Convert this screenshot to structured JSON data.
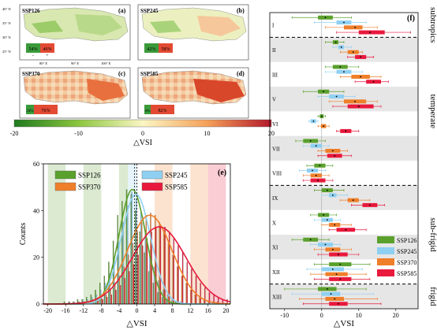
{
  "colors": {
    "SSP126": "#5aa02c",
    "SSP245": "#8fd0f2",
    "SSP370": "#ef7f2a",
    "SSP585": "#e8193c",
    "neg": "#2e8b2e",
    "pos": "#e34a33"
  },
  "maps": [
    {
      "tag": "SSP126",
      "panel": "(a)",
      "neg_pct": "54%",
      "pos_pct": "46%"
    },
    {
      "tag": "SSP245",
      "panel": "(b)",
      "neg_pct": "42%",
      "pos_pct": "58%"
    },
    {
      "tag": "SSP370",
      "panel": "(c)",
      "neg_pct": "24%",
      "pos_pct": "76%"
    },
    {
      "tag": "SSP585",
      "panel": "(d)",
      "neg_pct": "18%",
      "pos_pct": "82%"
    }
  ],
  "map_axes": {
    "lat_labels": [
      "40° N",
      "35° N",
      "30° N",
      "25° N"
    ],
    "lon_labels": [
      "80° E",
      "90° E",
      "100° E"
    ],
    "minus": "-",
    "plus": "+"
  },
  "colorbar": {
    "ticks": [
      "-20",
      "-10",
      "0",
      "10",
      "20"
    ],
    "label": "△VSI"
  },
  "chart_data": [
    {
      "type": "bar",
      "panel": "(e)",
      "xlabel": "△VSI",
      "ylabel": "Counts",
      "xlim": [
        -21,
        21
      ],
      "ylim": [
        0,
        60
      ],
      "x_ticks": [
        "-20",
        "-16",
        "-12",
        "-8",
        "-4",
        "0",
        "4",
        "8",
        "12",
        "16",
        "20"
      ],
      "y_ticks": [
        "0",
        "20",
        "40",
        "60"
      ],
      "legend": [
        "SSP126",
        "SSP370",
        "SSP245",
        "SSP585"
      ],
      "bins": [
        -20,
        -19,
        -18,
        -17,
        -16,
        -15,
        -14,
        -13,
        -12,
        -11,
        -10,
        -9,
        -8,
        -7,
        -6,
        -5,
        -4,
        -3,
        -2,
        -1,
        0,
        1,
        2,
        3,
        4,
        5,
        6,
        7,
        8,
        9,
        10,
        11,
        12,
        13,
        14,
        15,
        16,
        17,
        18,
        19,
        20
      ],
      "series": [
        {
          "name": "SSP126",
          "values": [
            0,
            0,
            0,
            0,
            1,
            1,
            1,
            2,
            2,
            3,
            4,
            6,
            9,
            12,
            18,
            27,
            38,
            44,
            49,
            47,
            40,
            31,
            22,
            14,
            9,
            5,
            3,
            2,
            1,
            1,
            0,
            0,
            0,
            0,
            0,
            0,
            0,
            0,
            0,
            0,
            0
          ]
        },
        {
          "name": "SSP245",
          "values": [
            0,
            0,
            0,
            0,
            0,
            1,
            1,
            1,
            2,
            2,
            3,
            4,
            6,
            9,
            13,
            19,
            27,
            35,
            42,
            48,
            45,
            39,
            31,
            23,
            16,
            10,
            6,
            4,
            2,
            1,
            1,
            0,
            0,
            0,
            0,
            0,
            0,
            0,
            0,
            0,
            0
          ]
        },
        {
          "name": "SSP370",
          "values": [
            0,
            0,
            0,
            0,
            0,
            0,
            0,
            1,
            1,
            1,
            2,
            2,
            3,
            4,
            6,
            9,
            12,
            16,
            21,
            26,
            31,
            35,
            38,
            39,
            38,
            35,
            31,
            26,
            21,
            16,
            12,
            9,
            6,
            4,
            3,
            2,
            1,
            1,
            1,
            0,
            0
          ]
        },
        {
          "name": "SSP585",
          "values": [
            0,
            0,
            0,
            0,
            0,
            0,
            0,
            0,
            1,
            1,
            1,
            2,
            2,
            3,
            4,
            6,
            8,
            11,
            14,
            17,
            21,
            25,
            28,
            31,
            33,
            34,
            33,
            31,
            28,
            25,
            22,
            18,
            15,
            12,
            9,
            7,
            5,
            4,
            3,
            2,
            2
          ]
        }
      ],
      "fit_curves": [
        {
          "name": "SSP126",
          "mean": -1.0,
          "sd": 3.0,
          "peak": 49
        },
        {
          "name": "SSP245",
          "mean": -0.2,
          "sd": 3.3,
          "peak": 47
        },
        {
          "name": "SSP370",
          "mean": 2.9,
          "sd": 5.0,
          "peak": 38
        },
        {
          "name": "SSP585",
          "mean": 5.0,
          "sd": 6.0,
          "peak": 33
        }
      ],
      "shaded_bands": [
        {
          "name": "SSP126",
          "range": [
            -20,
            -16
          ]
        },
        {
          "name": "SSP126",
          "range": [
            -12,
            -8
          ]
        },
        {
          "name": "SSP126",
          "range": [
            -4,
            -2
          ]
        },
        {
          "name": "SSP245",
          "range": [
            -2,
            0
          ]
        },
        {
          "name": "SSP370",
          "range": [
            4,
            8
          ]
        },
        {
          "name": "SSP370",
          "range": [
            12,
            16
          ]
        },
        {
          "name": "SSP585",
          "range": [
            16,
            20
          ]
        }
      ],
      "mean_lines": [
        -0.5,
        0.0
      ]
    },
    {
      "type": "box",
      "panel": "(f)",
      "xlabel": "△VSI",
      "xlim": [
        -14,
        26
      ],
      "x_ticks": [
        "-10",
        "0",
        "10",
        "20"
      ],
      "legend": [
        "SSP126",
        "SSP245",
        "SSP370",
        "SSP585"
      ],
      "zones": [
        {
          "name": "subtropics",
          "rows": [
            "I"
          ]
        },
        {
          "name": "temperate",
          "rows": [
            "II",
            "III",
            "V",
            "VI",
            "VII",
            "VIII"
          ]
        },
        {
          "name": "sub-frigid",
          "rows": [
            "IX",
            "X",
            "XI",
            "XII"
          ]
        },
        {
          "name": "frigid",
          "rows": [
            "XIII"
          ]
        }
      ],
      "rows": [
        {
          "label": "I",
          "boxes": [
            {
              "name": "SSP126",
              "whisker": [
                -8,
                8
              ],
              "q1": -1,
              "q3": 3,
              "median": 1
            },
            {
              "name": "SSP245",
              "whisker": [
                -2,
                12
              ],
              "q1": 4,
              "q3": 8,
              "median": 6
            },
            {
              "name": "SSP370",
              "whisker": [
                1,
                15
              ],
              "q1": 6,
              "q3": 11,
              "median": 9
            },
            {
              "name": "SSP585",
              "whisker": [
                4,
                24
              ],
              "q1": 10,
              "q3": 17,
              "median": 13
            }
          ]
        },
        {
          "label": "II",
          "boxes": [
            {
              "name": "SSP126",
              "whisker": [
                1,
                6
              ],
              "q1": 3,
              "q3": 4.5,
              "median": 3.8
            },
            {
              "name": "SSP245",
              "whisker": [
                3,
                8
              ],
              "q1": 4.5,
              "q3": 6,
              "median": 5.3
            },
            {
              "name": "SSP370",
              "whisker": [
                5,
                11
              ],
              "q1": 7,
              "q3": 10,
              "median": 8.5
            },
            {
              "name": "SSP585",
              "whisker": [
                7,
                14
              ],
              "q1": 9,
              "q3": 12,
              "median": 10.5
            }
          ]
        },
        {
          "label": "III",
          "boxes": [
            {
              "name": "SSP126",
              "whisker": [
                1,
                10
              ],
              "q1": 3,
              "q3": 7,
              "median": 5
            },
            {
              "name": "SSP245",
              "whisker": [
                1,
                11
              ],
              "q1": 4,
              "q3": 8,
              "median": 6
            },
            {
              "name": "SSP370",
              "whisker": [
                5,
                16
              ],
              "q1": 8,
              "q3": 13,
              "median": 10.5
            },
            {
              "name": "SSP585",
              "whisker": [
                9,
                18
              ],
              "q1": 12,
              "q3": 16,
              "median": 14
            }
          ]
        },
        {
          "label": "V",
          "boxes": [
            {
              "name": "SSP126",
              "whisker": [
                -5,
                6
              ],
              "q1": -1,
              "q3": 2,
              "median": 0.5
            },
            {
              "name": "SSP245",
              "whisker": [
                -1,
                9
              ],
              "q1": 2,
              "q3": 6,
              "median": 4
            },
            {
              "name": "SSP370",
              "whisker": [
                2,
                15
              ],
              "q1": 6,
              "q3": 12,
              "median": 9
            },
            {
              "name": "SSP585",
              "whisker": [
                3,
                16
              ],
              "q1": 7,
              "q3": 14,
              "median": 10
            }
          ]
        },
        {
          "label": "VI",
          "boxes": [
            {
              "name": "SSP126",
              "whisker": [
                -1,
                1
              ],
              "q1": -0.5,
              "q3": 0.5,
              "median": 0
            },
            {
              "name": "SSP245",
              "whisker": [
                -3.5,
                -1
              ],
              "q1": -3,
              "q3": -1.5,
              "median": -2.2
            },
            {
              "name": "SSP370",
              "whisker": [
                -1,
                2
              ],
              "q1": -0.2,
              "q3": 1.2,
              "median": 0.5
            },
            {
              "name": "SSP585",
              "whisker": [
                4,
                10
              ],
              "q1": 5,
              "q3": 8,
              "median": 6.5
            }
          ]
        },
        {
          "label": "VII",
          "boxes": [
            {
              "name": "SSP126",
              "whisker": [
                -7,
                1
              ],
              "q1": -5,
              "q3": -1,
              "median": -3
            },
            {
              "name": "SSP245",
              "whisker": [
                -5,
                2
              ],
              "q1": -3,
              "q3": 0,
              "median": -1.5
            },
            {
              "name": "SSP370",
              "whisker": [
                -1,
                7
              ],
              "q1": 1,
              "q3": 5,
              "median": 3
            },
            {
              "name": "SSP585",
              "whisker": [
                -1,
                8
              ],
              "q1": 1.5,
              "q3": 5.5,
              "median": 3.5
            }
          ]
        },
        {
          "label": "VIII",
          "boxes": [
            {
              "name": "SSP126",
              "whisker": [
                -4,
                3
              ],
              "q1": -2,
              "q3": 1,
              "median": -0.5
            },
            {
              "name": "SSP245",
              "whisker": [
                -6,
                1
              ],
              "q1": -4,
              "q3": -1,
              "median": -2.5
            },
            {
              "name": "SSP370",
              "whisker": [
                -5,
                2
              ],
              "q1": -3,
              "q3": 0,
              "median": -1.5
            },
            {
              "name": "SSP585",
              "whisker": [
                -5,
                3
              ],
              "q1": -3,
              "q3": 1,
              "median": -1
            }
          ]
        },
        {
          "label": "IX",
          "boxes": [
            {
              "name": "SSP126",
              "whisker": [
                -2,
                6
              ],
              "q1": 0,
              "q3": 3,
              "median": 1.5
            },
            {
              "name": "SSP245",
              "whisker": [
                0,
                7
              ],
              "q1": 2,
              "q3": 4,
              "median": 3
            },
            {
              "name": "SSP370",
              "whisker": [
                5,
                13
              ],
              "q1": 7,
              "q3": 10,
              "median": 8.5
            },
            {
              "name": "SSP585",
              "whisker": [
                8,
                17
              ],
              "q1": 11,
              "q3": 15,
              "median": 13
            }
          ]
        },
        {
          "label": "X",
          "boxes": [
            {
              "name": "SSP126",
              "whisker": [
                -3,
                4
              ],
              "q1": -1,
              "q3": 2,
              "median": 0.5
            },
            {
              "name": "SSP245",
              "whisker": [
                -2,
                5
              ],
              "q1": 0,
              "q3": 3,
              "median": 1.5
            },
            {
              "name": "SSP370",
              "whisker": [
                0,
                8
              ],
              "q1": 2,
              "q3": 5,
              "median": 3.5
            },
            {
              "name": "SSP585",
              "whisker": [
                2,
                12
              ],
              "q1": 4,
              "q3": 9,
              "median": 6.5
            }
          ]
        },
        {
          "label": "XI",
          "boxes": [
            {
              "name": "SSP126",
              "whisker": [
                -8,
                2
              ],
              "q1": -5,
              "q3": -1,
              "median": -3
            },
            {
              "name": "SSP245",
              "whisker": [
                -3,
                5
              ],
              "q1": -1,
              "q3": 3,
              "median": 1
            },
            {
              "name": "SSP370",
              "whisker": [
                -2,
                8
              ],
              "q1": 1,
              "q3": 5,
              "median": 3
            },
            {
              "name": "SSP585",
              "whisker": [
                -1,
                10
              ],
              "q1": 2,
              "q3": 7,
              "median": 4.5
            }
          ]
        },
        {
          "label": "XII",
          "boxes": [
            {
              "name": "SSP126",
              "whisker": [
                -2,
                13
              ],
              "q1": 2,
              "q3": 8,
              "median": 5
            },
            {
              "name": "SSP245",
              "whisker": [
                -4,
                11
              ],
              "q1": 0,
              "q3": 6,
              "median": 3
            },
            {
              "name": "SSP370",
              "whisker": [
                -3,
                12
              ],
              "q1": 1,
              "q3": 7,
              "median": 4
            },
            {
              "name": "SSP585",
              "whisker": [
                -2,
                13
              ],
              "q1": 2,
              "q3": 8,
              "median": 5
            }
          ]
        },
        {
          "label": "XIII",
          "boxes": [
            {
              "name": "SSP126",
              "whisker": [
                -10,
                12
              ],
              "q1": -1,
              "q3": 4,
              "median": 1.5
            },
            {
              "name": "SSP245",
              "whisker": [
                -8,
                14
              ],
              "q1": 0,
              "q3": 5,
              "median": 2.5
            },
            {
              "name": "SSP370",
              "whisker": [
                -6,
                15
              ],
              "q1": 1,
              "q3": 6,
              "median": 3.5
            },
            {
              "name": "SSP585",
              "whisker": [
                -5,
                16
              ],
              "q1": 2,
              "q3": 7,
              "median": 4.5
            }
          ]
        }
      ]
    }
  ]
}
